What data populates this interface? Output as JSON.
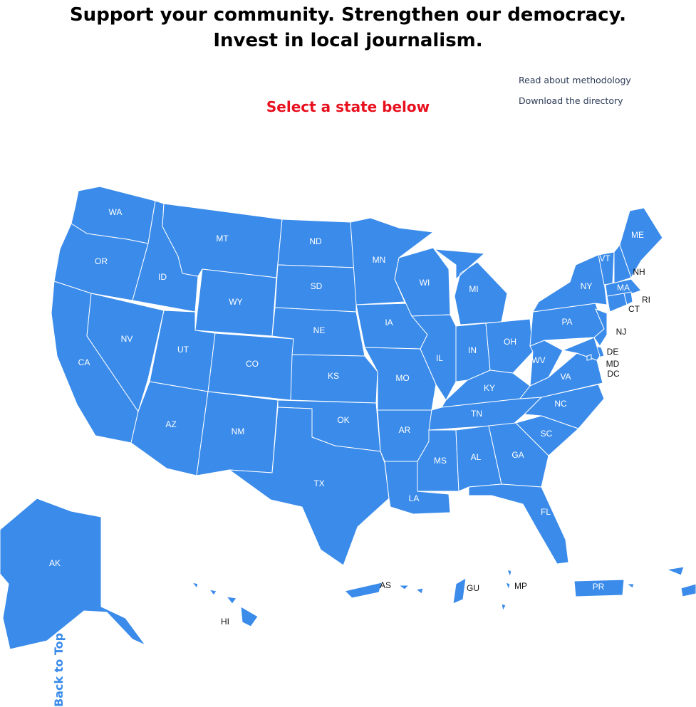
{
  "header": {
    "line1": "Support your community. Strengthen our democracy.",
    "line2": "Invest in local journalism."
  },
  "links": {
    "methodology": "Read about methodology",
    "directory": "Download the directory"
  },
  "map": {
    "title": "Select a state below",
    "fill_color": "#3a8bea",
    "border_color": "#ffffff",
    "title_color": "#e8101e",
    "states": [
      "WA",
      "OR",
      "CA",
      "ID",
      "NV",
      "MT",
      "WY",
      "UT",
      "AZ",
      "CO",
      "NM",
      "ND",
      "SD",
      "NE",
      "KS",
      "OK",
      "TX",
      "MN",
      "IA",
      "MO",
      "AR",
      "LA",
      "WI",
      "IL",
      "MI",
      "IN",
      "OH",
      "KY",
      "TN",
      "MS",
      "AL",
      "GA",
      "FL",
      "SC",
      "NC",
      "VA",
      "WV",
      "PA",
      "NY",
      "VT",
      "NH",
      "ME",
      "MA",
      "RI",
      "CT",
      "NJ",
      "DE",
      "MD",
      "DC",
      "AK",
      "HI",
      "AS",
      "GU",
      "MP",
      "PR"
    ]
  },
  "back_to_top": "Back to Top"
}
